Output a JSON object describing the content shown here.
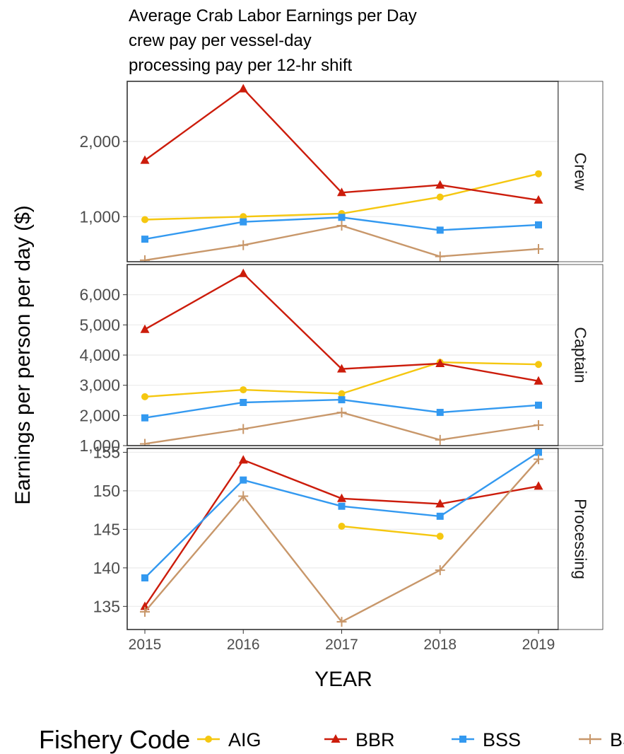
{
  "chart_data": {
    "type": "line",
    "title_lines": [
      "Average Crab Labor Earnings per Day",
      "crew pay per vessel-day",
      "processing pay per 12-hr shift"
    ],
    "xlabel": "YEAR",
    "ylabel": "Earnings per person per day ($)",
    "x": [
      2015,
      2016,
      2017,
      2018,
      2019
    ],
    "x_ticks": [
      "2015",
      "2016",
      "2017",
      "2018",
      "2019"
    ],
    "legend": {
      "title": "Fishery Code",
      "position": "bottom",
      "entries": [
        "AIG",
        "BBR",
        "BSS",
        "BS"
      ]
    },
    "series_styles": [
      {
        "name": "AIG",
        "color": "#F5C710",
        "marker": "circle"
      },
      {
        "name": "BBR",
        "color": "#CC1C0B",
        "marker": "triangle"
      },
      {
        "name": "BSS",
        "color": "#3399F0",
        "marker": "square"
      },
      {
        "name": "BS",
        "color": "#C8976A",
        "marker": "plus"
      }
    ],
    "grid": true,
    "panels": [
      {
        "label": "Crew",
        "ylim": [
          400,
          2800
        ],
        "y_ticks": [
          1000,
          2000
        ],
        "y_tick_labels": [
          "1,000",
          "2,000"
        ],
        "series": [
          {
            "name": "AIG",
            "values": [
              960,
              1000,
              1040,
              1260,
              1570
            ]
          },
          {
            "name": "BBR",
            "values": [
              1750,
              2700,
              1320,
              1420,
              1220
            ]
          },
          {
            "name": "BSS",
            "values": [
              700,
              930,
              990,
              820,
              890
            ]
          },
          {
            "name": "BS",
            "values": [
              420,
              620,
              880,
              470,
              570
            ]
          }
        ]
      },
      {
        "label": "Captain",
        "ylim": [
          1000,
          7000
        ],
        "y_ticks": [
          1000,
          2000,
          3000,
          4000,
          5000,
          6000
        ],
        "y_tick_labels": [
          "1,000",
          "2,000",
          "3,000",
          "4,000",
          "5,000",
          "6,000"
        ],
        "series": [
          {
            "name": "AIG",
            "values": [
              2620,
              2850,
              2720,
              3760,
              3690
            ]
          },
          {
            "name": "BBR",
            "values": [
              4850,
              6700,
              3540,
              3720,
              3140
            ]
          },
          {
            "name": "BSS",
            "values": [
              1920,
              2430,
              2520,
              2100,
              2340
            ]
          },
          {
            "name": "BS",
            "values": [
              1060,
              1550,
              2100,
              1190,
              1680
            ]
          }
        ]
      },
      {
        "label": "Processing",
        "ylim": [
          132,
          155.5
        ],
        "y_ticks": [
          135,
          140,
          145,
          150,
          155
        ],
        "y_tick_labels": [
          "135",
          "140",
          "145",
          "150",
          "155"
        ],
        "series": [
          {
            "name": "AIG",
            "values": [
              null,
              null,
              145.4,
              144.1,
              null
            ]
          },
          {
            "name": "BBR",
            "values": [
              135.0,
              154.0,
              149.0,
              148.3,
              150.6
            ]
          },
          {
            "name": "BSS",
            "values": [
              138.7,
              151.4,
              148.0,
              146.7,
              155.0
            ]
          },
          {
            "name": "BS",
            "values": [
              134.3,
              149.3,
              133.0,
              139.7,
              154.1
            ]
          }
        ]
      }
    ]
  }
}
